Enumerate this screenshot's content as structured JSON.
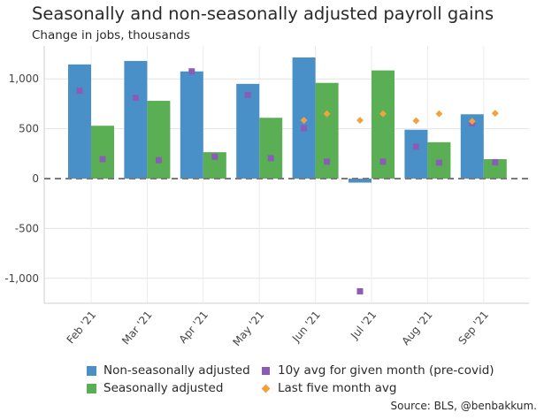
{
  "title": "Seasonally and non-seasonally adjusted payroll gains",
  "subtitle": "Change in jobs, thousands",
  "source": "Source: BLS, @benbakkum.",
  "chart_data": {
    "type": "bar",
    "categories": [
      "Feb '21",
      "Mar '21",
      "Apr '21",
      "May '21",
      "Jun '21",
      "Jul '21",
      "Aug '21",
      "Sep '21"
    ],
    "ylim": [
      -1250,
      1330
    ],
    "yticks": [
      1000,
      500,
      0,
      -500,
      -1000
    ],
    "ytick_labels": [
      "1,000",
      "500",
      "0",
      "-500",
      "-1,000"
    ],
    "grid": true,
    "zero_line": "dashed",
    "legend_position": "bottom",
    "series": [
      {
        "name": "Non-seasonally adjusted",
        "kind": "bar",
        "color": "#4a90c8",
        "values": [
          1145,
          1180,
          1075,
          950,
          1215,
          -40,
          490,
          645
        ]
      },
      {
        "name": "Seasonally adjusted",
        "kind": "bar",
        "color": "#5aaf55",
        "values": [
          530,
          780,
          265,
          610,
          960,
          1085,
          365,
          195
        ]
      },
      {
        "name": "10y avg for given month (pre-covid)",
        "kind": "square",
        "color": "#8a5cb8",
        "values": [
          880,
          810,
          1075,
          840,
          505,
          -1130,
          320,
          555
        ]
      },
      {
        "name": "Last five month avg",
        "kind": "diamond",
        "color": "#f0a23c",
        "values": [
          null,
          null,
          null,
          null,
          585,
          585,
          580,
          575
        ]
      }
    ],
    "extra_points": [
      {
        "series": 2,
        "category": 0,
        "offset": 1,
        "value": 195
      },
      {
        "series": 2,
        "category": 1,
        "offset": 1,
        "value": 185
      },
      {
        "series": 2,
        "category": 2,
        "offset": 1,
        "value": 220
      },
      {
        "series": 2,
        "category": 3,
        "offset": 1,
        "value": 205
      },
      {
        "series": 2,
        "category": 4,
        "offset": 1,
        "value": 170
      },
      {
        "series": 2,
        "category": 5,
        "offset": 1,
        "value": 170
      },
      {
        "series": 2,
        "category": 6,
        "offset": 1,
        "value": 160
      },
      {
        "series": 2,
        "category": 7,
        "offset": 1,
        "value": 165
      },
      {
        "series": 3,
        "category": 4,
        "offset": 1,
        "value": 650
      },
      {
        "series": 3,
        "category": 5,
        "offset": 1,
        "value": 650
      },
      {
        "series": 3,
        "category": 6,
        "offset": 1,
        "value": 650
      },
      {
        "series": 3,
        "category": 7,
        "offset": 1,
        "value": 655
      }
    ]
  }
}
